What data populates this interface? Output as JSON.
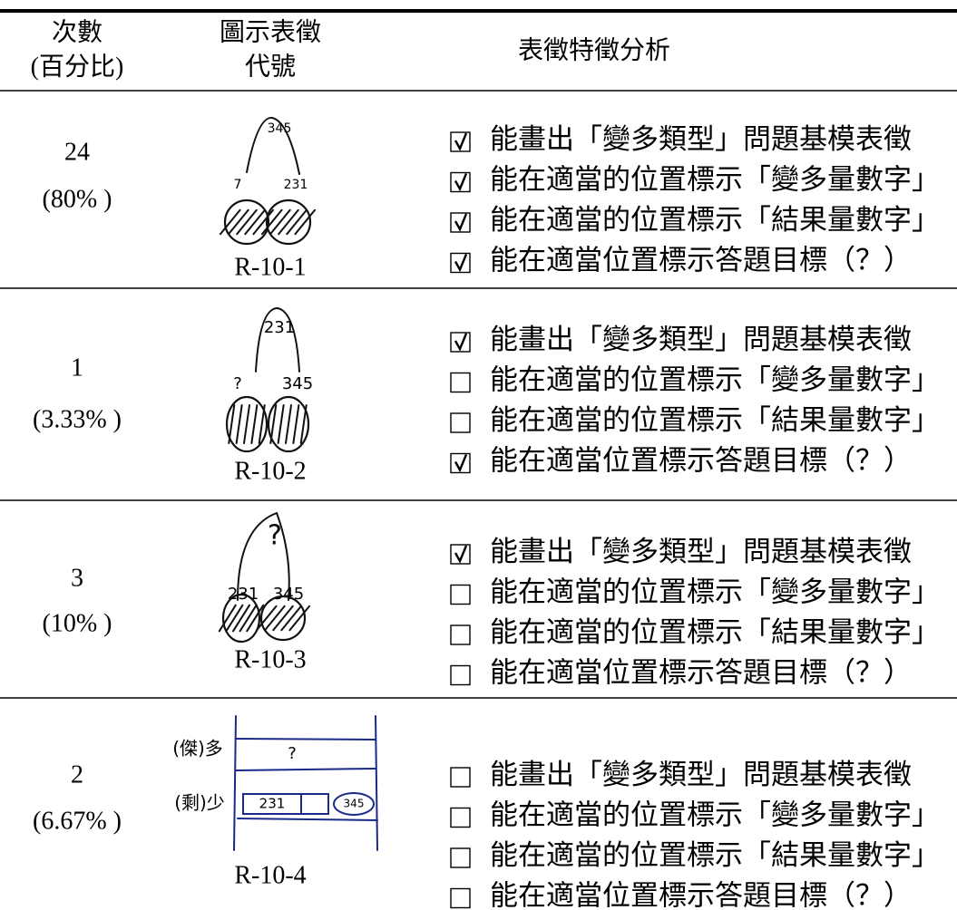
{
  "header": {
    "col1": [
      "次數",
      "(百分比)"
    ],
    "col2": [
      "圖示表徵",
      "代號"
    ],
    "col3": "表徵特徵分析"
  },
  "rows": [
    {
      "count": "24",
      "percent": "(80% )",
      "code": "R-10-1",
      "sketch_labels": [
        "345",
        "7",
        "231"
      ],
      "items": [
        {
          "text": "能畫出「變多類型」問題基模表徵",
          "checked": true
        },
        {
          "text": "能在適當的位置標示「變多量數字」",
          "checked": true
        },
        {
          "text": "能在適當的位置標示「結果量數字」",
          "checked": true
        },
        {
          "text": "能在適當位置標示答題目標（？）",
          "checked": true
        }
      ]
    },
    {
      "count": "1",
      "percent": "(3.33% )",
      "code": "R-10-2",
      "sketch_labels": [
        "231",
        "?",
        "345"
      ],
      "items": [
        {
          "text": "能畫出「變多類型」問題基模表徵",
          "checked": true
        },
        {
          "text": "能在適當的位置標示「變多量數字」",
          "checked": false
        },
        {
          "text": "能在適當的位置標示「結果量數字」",
          "checked": false
        },
        {
          "text": "能在適當位置標示答題目標（？）",
          "checked": true
        }
      ]
    },
    {
      "count": "3",
      "percent": "(10% )",
      "code": "R-10-3",
      "sketch_labels": [
        "?",
        "231",
        "345"
      ],
      "items": [
        {
          "text": "能畫出「變多類型」問題基模表徵",
          "checked": true
        },
        {
          "text": "能在適當的位置標示「變多量數字」",
          "checked": false
        },
        {
          "text": "能在適當的位置標示「結果量數字」",
          "checked": false
        },
        {
          "text": "能在適當位置標示答題目標（？）",
          "checked": false
        }
      ]
    },
    {
      "count": "2",
      "percent": "(6.67% )",
      "code": "R-10-4",
      "sketch_labels": [
        "(傑)多",
        "(剩)少",
        "?",
        "231",
        "345"
      ],
      "items": [
        {
          "text": "能畫出「變多類型」問題基模表徵",
          "checked": false
        },
        {
          "text": "能在適當的位置標示「變多量數字」",
          "checked": false
        },
        {
          "text": "能在適當的位置標示「結果量數字」",
          "checked": false
        },
        {
          "text": "能在適當位置標示答題目標（？）",
          "checked": false
        }
      ]
    }
  ]
}
